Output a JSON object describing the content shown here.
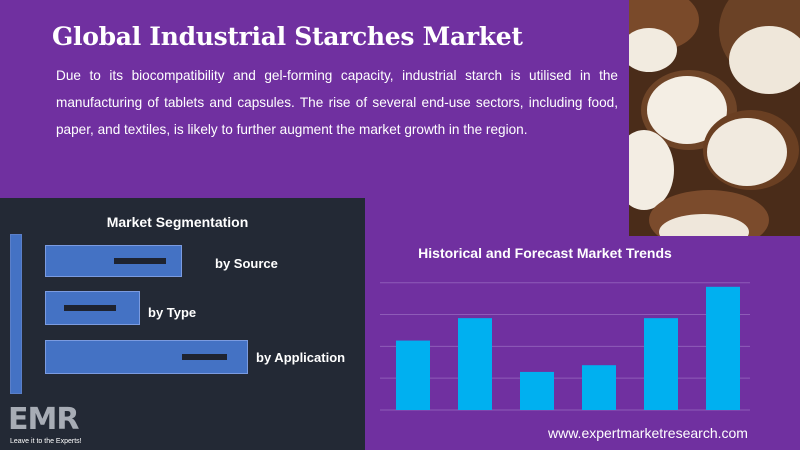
{
  "header": {
    "title": "Global Industrial Starches Market",
    "description": "Due to its biocompatibility and gel-forming capacity, industrial starch is utilised in the manufacturing of tablets and capsules. The rise of several end-use sectors, including food, paper, and textiles, is likely to further augment the market growth in the region."
  },
  "segmentation": {
    "title": "Market Segmentation",
    "items": [
      {
        "label": "by Source"
      },
      {
        "label": "by Type"
      },
      {
        "label": "by Application"
      }
    ]
  },
  "logo": {
    "text": "EMR",
    "tagline": "Leave it to the Experts!"
  },
  "chart_title": "Historical and Forecast Market Trends",
  "chart_data": {
    "type": "bar",
    "categories": [
      "",
      "",
      "",
      "",
      "",
      ""
    ],
    "values": [
      62,
      82,
      34,
      40,
      82,
      110
    ],
    "ylim": [
      0,
      125
    ],
    "grid": true,
    "bar_color": "#00b0f0"
  },
  "footer": {
    "website": "www.expertmarketresearch.com"
  },
  "colors": {
    "background": "#7030a0",
    "panel": "#232935",
    "segment_bar": "#4472c4",
    "chart_bar": "#00b0f0"
  }
}
